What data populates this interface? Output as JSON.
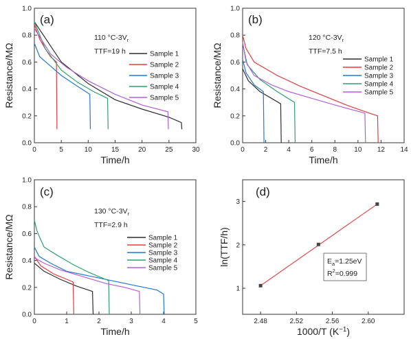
{
  "chart_data": [
    {
      "type": "line",
      "panel_label": "(a)",
      "condition": "110 °C-3Vr",
      "ttf_label": "TTF=19 h",
      "xlabel": "Time/h",
      "ylabel": "Resistance/MΩ",
      "xlim": [
        0,
        30
      ],
      "ylim": [
        0,
        1.0
      ],
      "xticks": [
        "0",
        "5",
        "10",
        "15",
        "20",
        "25",
        "30"
      ],
      "yticks": [
        "0.0",
        "0.2",
        "0.4",
        "0.6",
        "0.8",
        "1.0"
      ],
      "legend_position": "top-right",
      "series": [
        {
          "name": "Sample 1",
          "color": "#2b2b2b",
          "x": [
            0,
            2,
            5,
            10,
            15,
            20,
            25,
            27.3,
            27.4
          ],
          "y": [
            0.9,
            0.78,
            0.6,
            0.44,
            0.32,
            0.25,
            0.19,
            0.15,
            0.1
          ]
        },
        {
          "name": "Sample 2",
          "color": "#e8383d",
          "x": [
            0,
            1,
            2,
            3,
            4.1,
            4.2
          ],
          "y": [
            0.88,
            0.77,
            0.7,
            0.64,
            0.6,
            0.1
          ]
        },
        {
          "name": "Sample 3",
          "color": "#1f77d0",
          "x": [
            0,
            1,
            3,
            5,
            8,
            10.3,
            10.4
          ],
          "y": [
            0.74,
            0.64,
            0.57,
            0.5,
            0.42,
            0.36,
            0.1
          ]
        },
        {
          "name": "Sample 4",
          "color": "#2ba06b",
          "x": [
            0,
            2,
            5,
            8,
            11,
            13.6,
            13.7
          ],
          "y": [
            0.9,
            0.7,
            0.54,
            0.45,
            0.38,
            0.33,
            0.1
          ]
        },
        {
          "name": "Sample 5",
          "color": "#b05fd8",
          "x": [
            0,
            3,
            6,
            10,
            15,
            20,
            24.8,
            24.9
          ],
          "y": [
            0.85,
            0.66,
            0.56,
            0.46,
            0.36,
            0.28,
            0.23,
            0.1
          ]
        }
      ]
    },
    {
      "type": "line",
      "panel_label": "(b)",
      "condition": "120 °C-3Vr",
      "ttf_label": "TTF=7.5 h",
      "xlabel": "Time/h",
      "ylabel": "Resistance/MΩ",
      "xlim": [
        0,
        14
      ],
      "ylim": [
        0,
        1.0
      ],
      "xticks": [
        "0",
        "2",
        "4",
        "6",
        "8",
        "10",
        "12",
        "14"
      ],
      "yticks": [
        "0.0",
        "0.2",
        "0.4",
        "0.6",
        "0.8",
        "1.0"
      ],
      "legend_position": "right",
      "series": [
        {
          "name": "Sample 1",
          "color": "#2b2b2b",
          "x": [
            0,
            0.5,
            1.5,
            2.5,
            3.3,
            3.35
          ],
          "y": [
            0.55,
            0.46,
            0.38,
            0.33,
            0.29,
            0.0
          ]
        },
        {
          "name": "Sample 2",
          "color": "#e8383d",
          "x": [
            0,
            0.3,
            1,
            3,
            5,
            7,
            9,
            11,
            11.7,
            11.75
          ],
          "y": [
            0.8,
            0.7,
            0.6,
            0.5,
            0.42,
            0.35,
            0.28,
            0.22,
            0.2,
            0.0
          ]
        },
        {
          "name": "Sample 3",
          "color": "#1f77d0",
          "x": [
            0,
            0.3,
            1,
            1.8,
            1.85
          ],
          "y": [
            0.62,
            0.52,
            0.43,
            0.38,
            0.0
          ]
        },
        {
          "name": "Sample 4",
          "color": "#2ba06b",
          "x": [
            0,
            0.4,
            1.5,
            3,
            4.5,
            4.55
          ],
          "y": [
            0.74,
            0.58,
            0.47,
            0.38,
            0.3,
            0.0
          ]
        },
        {
          "name": "Sample 5",
          "color": "#b05fd8",
          "x": [
            0,
            0.3,
            1,
            2.5,
            4,
            6,
            8,
            10.6,
            10.65
          ],
          "y": [
            0.75,
            0.6,
            0.5,
            0.43,
            0.38,
            0.33,
            0.28,
            0.22,
            0.0
          ]
        }
      ]
    },
    {
      "type": "line",
      "panel_label": "(c)",
      "condition": "130 °C-3Vr",
      "ttf_label": "TTF=2.9 h",
      "xlabel": "Time/h",
      "ylabel": "Resistance/MΩ",
      "xlim": [
        0,
        5
      ],
      "ylim": [
        0,
        1.0
      ],
      "xticks": [
        "0",
        "1",
        "2",
        "3",
        "4",
        "5"
      ],
      "yticks": [
        "0.0",
        "0.2",
        "0.4",
        "0.6",
        "0.8",
        "1.0"
      ],
      "legend_position": "right",
      "series": [
        {
          "name": "Sample 1",
          "color": "#2b2b2b",
          "x": [
            0,
            0.3,
            0.8,
            1.3,
            1.8,
            1.82
          ],
          "y": [
            0.38,
            0.32,
            0.26,
            0.21,
            0.17,
            0.0
          ]
        },
        {
          "name": "Sample 2",
          "color": "#e8383d",
          "x": [
            0,
            0.2,
            0.6,
            1.0,
            1.2,
            1.22
          ],
          "y": [
            0.43,
            0.36,
            0.3,
            0.26,
            0.24,
            0.0
          ]
        },
        {
          "name": "Sample 3",
          "color": "#1f77d0",
          "x": [
            0,
            0.15,
            0.5,
            1.0,
            2.0,
            3.0,
            3.8,
            4.0,
            4.02
          ],
          "y": [
            0.5,
            0.43,
            0.38,
            0.32,
            0.27,
            0.22,
            0.18,
            0.15,
            0.0
          ]
        },
        {
          "name": "Sample 4",
          "color": "#2ba06b",
          "x": [
            0,
            0.08,
            0.15,
            0.3,
            0.7,
            1.2,
            1.7,
            2.3,
            2.32
          ],
          "y": [
            0.7,
            0.62,
            0.58,
            0.5,
            0.44,
            0.37,
            0.31,
            0.25,
            0.0
          ]
        },
        {
          "name": "Sample 5",
          "color": "#b05fd8",
          "x": [
            0,
            0.3,
            0.8,
            1.5,
            2.2,
            2.8,
            3.25,
            3.27
          ],
          "y": [
            0.42,
            0.38,
            0.33,
            0.28,
            0.23,
            0.2,
            0.17,
            0.0
          ]
        }
      ]
    },
    {
      "type": "scatter",
      "panel_label": "(d)",
      "xlabel": "1000/T (K⁻¹)",
      "ylabel": "ln(TTF/h)",
      "xlim": [
        2.46,
        2.64
      ],
      "ylim": [
        0.4,
        3.5
      ],
      "xticks": [
        "2.48",
        "2.52",
        "2.56",
        "2.60"
      ],
      "yticks": [
        "1",
        "2",
        "3"
      ],
      "annotation": [
        "Ea=1.25eV",
        "R2=0.999"
      ],
      "points": {
        "x": [
          2.48,
          2.5445,
          2.61
        ],
        "y": [
          1.06,
          2.01,
          2.94
        ]
      },
      "fit": {
        "x": [
          2.48,
          2.61
        ],
        "y": [
          1.06,
          2.94
        ],
        "color": "#e8383d"
      }
    }
  ]
}
